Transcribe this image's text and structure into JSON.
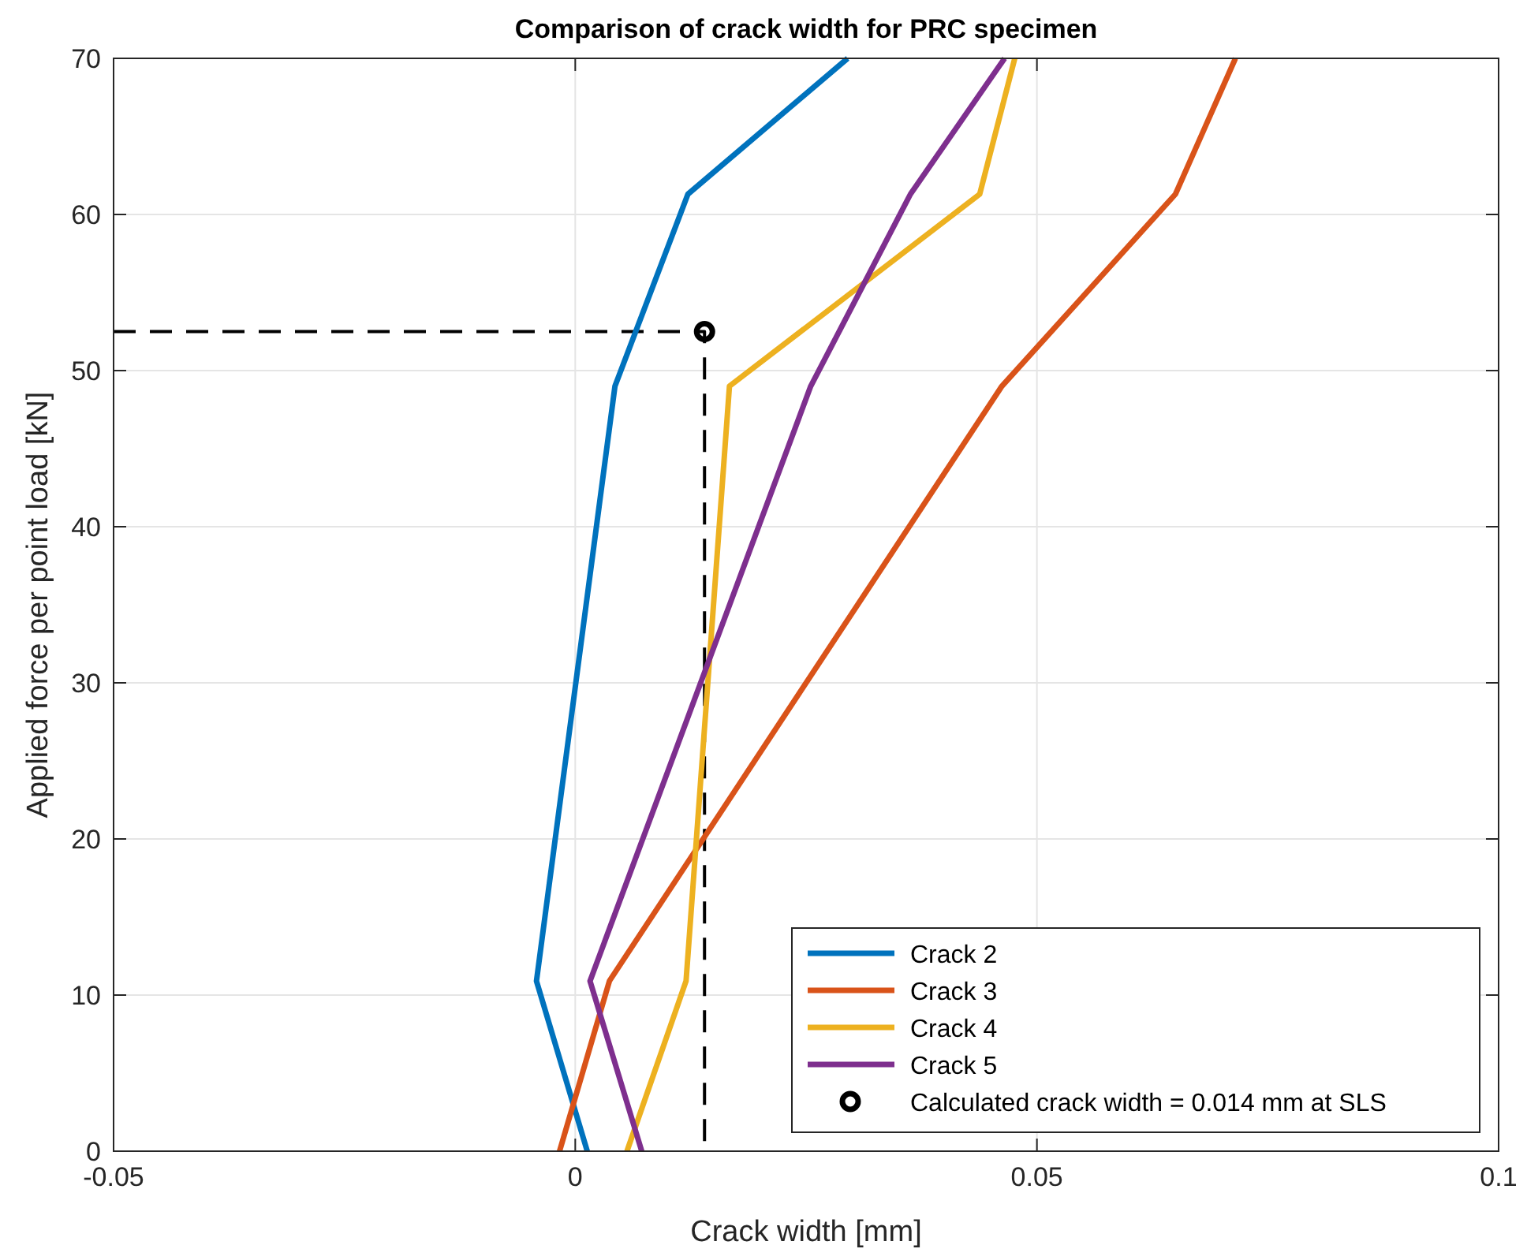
{
  "chart_data": {
    "type": "line",
    "title": "Comparison of crack width for PRC specimen",
    "xlabel": "Crack width [mm]",
    "ylabel": "Applied force per point load [kN]",
    "xlim": [
      -0.05,
      0.1
    ],
    "xticks": [
      -0.05,
      0,
      0.05,
      0.1
    ],
    "ylim": [
      0,
      70
    ],
    "yticks": [
      0,
      10,
      20,
      30,
      40,
      50,
      60,
      70
    ],
    "grid": true,
    "legend": "bottom right",
    "series": [
      {
        "type": "line",
        "line_style": "dashed",
        "color": "#000000",
        "x": [
          -0.05,
          0.014,
          0.014
        ],
        "values": [
          52.5,
          52.5,
          0
        ]
      },
      {
        "name": "Crack 2",
        "color": "#0072bd",
        "x": [
          0.0013,
          -0.0042,
          0.0043,
          0.0122,
          0.0295
        ],
        "values": [
          0,
          10.9,
          49,
          61.3,
          70
        ]
      },
      {
        "name": "Crack 3",
        "color": "#d95319",
        "x": [
          -0.0017,
          0.0037,
          0.0462,
          0.065,
          0.0715
        ],
        "values": [
          0,
          10.9,
          49,
          61.3,
          70
        ]
      },
      {
        "name": "Crack 4",
        "color": "#edb120",
        "x": [
          0.0056,
          0.012,
          0.0167,
          0.0438,
          0.0476
        ],
        "values": [
          0,
          10.9,
          49,
          61.3,
          70
        ]
      },
      {
        "name": "Crack 5",
        "color": "#7e2f8e",
        "x": [
          0.0072,
          0.0016,
          0.0255,
          0.0363,
          0.0465
        ],
        "values": [
          0,
          10.9,
          49,
          61.3,
          70
        ]
      },
      {
        "type": "scatter",
        "name": "Calculated crack width = 0.014 mm at SLS",
        "color": "#000000",
        "marker": "circle",
        "x": [
          0.014
        ],
        "values": [
          52.5
        ]
      }
    ]
  }
}
